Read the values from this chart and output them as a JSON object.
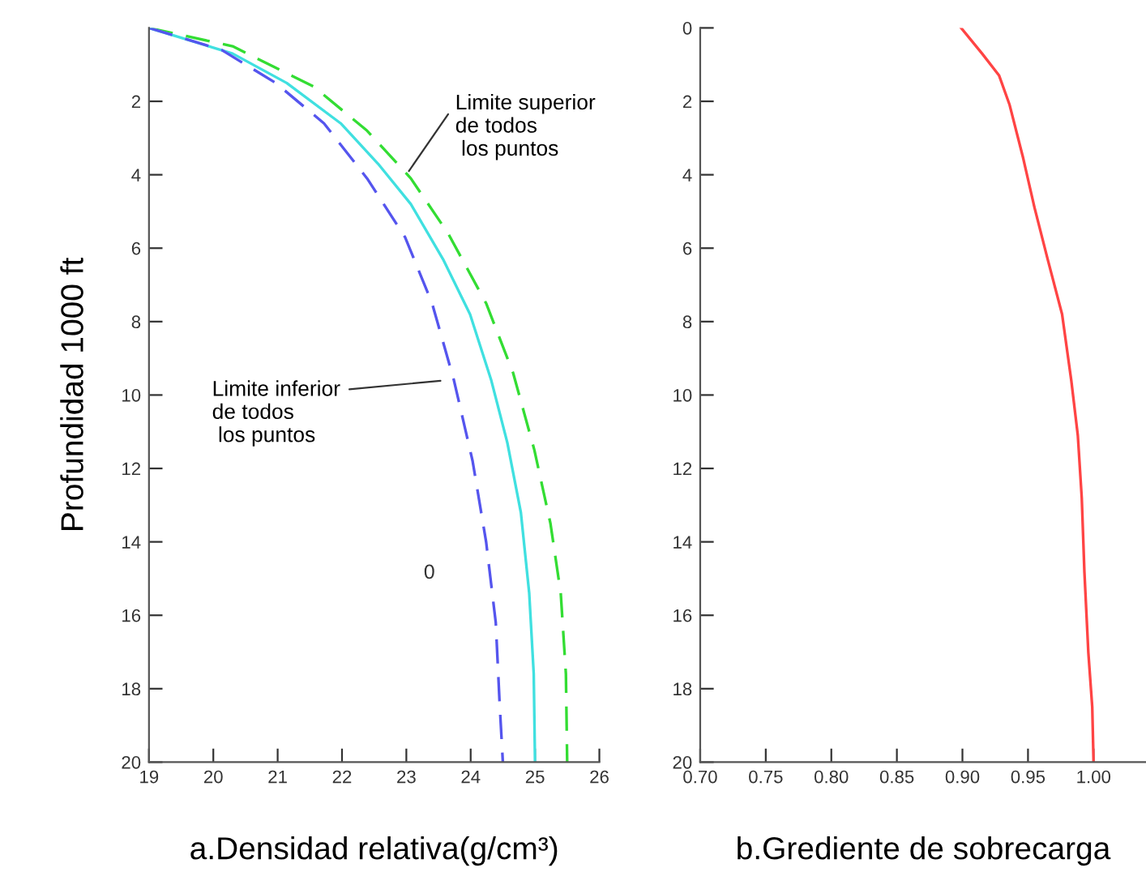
{
  "chart_data": [
    {
      "type": "line",
      "xlabel": "a.Densidad relativa(g/cm³)",
      "ylabel": "Profundidad 1000 ft",
      "xlim": [
        19,
        26
      ],
      "xticks": [
        19,
        20,
        21,
        22,
        23,
        24,
        25,
        26
      ],
      "ylim": [
        20,
        0
      ],
      "yticks": [
        2,
        4,
        6,
        8,
        10,
        12,
        14,
        16,
        18,
        20
      ],
      "grid": false,
      "series": [
        {
          "color": "#33dd33",
          "line_style": "dashed",
          "x": [
            19,
            20.3,
            21.56,
            22.39,
            23.07,
            23.65,
            24.24,
            24.66,
            24.99,
            25.24,
            25.4,
            25.48,
            25.5
          ],
          "values": [
            0,
            0.5,
            1.6,
            2.8,
            4.1,
            5.6,
            7.5,
            9.4,
            11.5,
            13.5,
            15.4,
            17.6,
            20
          ]
        },
        {
          "color": "#40e0e0",
          "line_style": "solid",
          "x": [
            19,
            20.3,
            21.14,
            21.98,
            22.56,
            23.07,
            23.57,
            23.99,
            24.32,
            24.57,
            24.78,
            24.91,
            24.98,
            25
          ],
          "values": [
            0,
            0.7,
            1.5,
            2.6,
            3.7,
            4.8,
            6.3,
            7.8,
            9.6,
            11.3,
            13.2,
            15.4,
            17.6,
            20
          ]
        },
        {
          "color": "#5555ee",
          "line_style": "dashed",
          "x": [
            19,
            20.13,
            20.97,
            21.72,
            22.39,
            22.98,
            23.4,
            23.74,
            24.03,
            24.24,
            24.39,
            24.45,
            24.5
          ],
          "values": [
            0,
            0.6,
            1.5,
            2.6,
            4.1,
            5.7,
            7.5,
            9.6,
            11.8,
            14.0,
            16.2,
            18.4,
            20
          ]
        }
      ],
      "annotations": [
        {
          "text": "Limite superior\nde todos\n los puntos",
          "x": 23.0,
          "y": 4.0
        },
        {
          "text": "Limite inferior\nde todos\n los puntos",
          "x": 23.6,
          "y": 9.6
        },
        "0"
      ]
    },
    {
      "type": "line",
      "xlabel": "b.Grediente de sobrecarga",
      "xlim": [
        0.7,
        1.04
      ],
      "xticks": [
        {
          "value": 0.7,
          "label": "0.70"
        },
        0.75,
        {
          "value": 0.8,
          "label": "0.80"
        },
        0.85,
        {
          "value": 0.9,
          "label": "0.90"
        },
        0.95,
        {
          "value": 1.0,
          "label": "1.00"
        }
      ],
      "ylim": [
        20,
        0
      ],
      "yticks": [
        0,
        2,
        4,
        6,
        8,
        10,
        12,
        14,
        16,
        18,
        20
      ],
      "grid": false,
      "series": [
        {
          "color": "#ff4444",
          "line_style": "solid",
          "x": [
            0.899,
            0.915,
            0.928,
            0.936,
            0.946,
            0.955,
            0.965,
            0.976,
            0.983,
            0.988,
            0.991,
            0.993,
            0.996,
            0.999,
            1.0
          ],
          "values": [
            0,
            0.7,
            1.3,
            2.1,
            3.5,
            4.9,
            6.3,
            7.8,
            9.6,
            11.1,
            12.8,
            14.8,
            17.0,
            18.5,
            20
          ]
        }
      ]
    }
  ]
}
